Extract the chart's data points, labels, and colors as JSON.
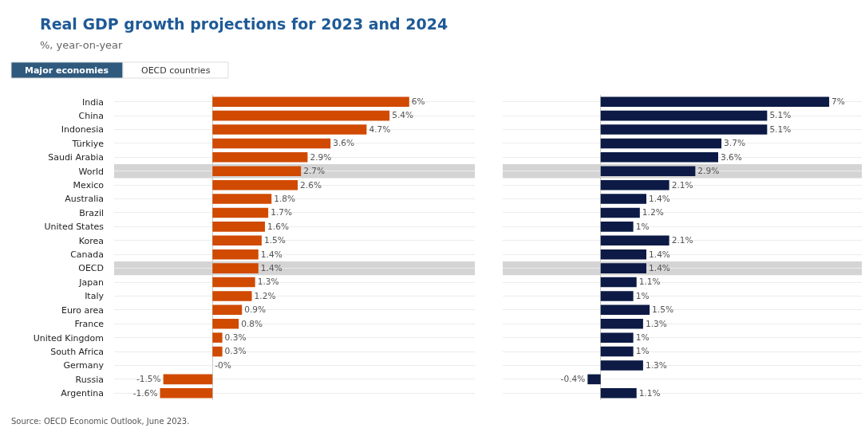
{
  "chart_data": [
    {
      "type": "bar",
      "orientation": "horizontal",
      "title": "Real GDP growth projections for 2023 and 2024",
      "subtitle": "%, year-on-year",
      "annotations": [
        "Major economies",
        "OECD countries",
        "Source: OECD Economic Outlook, June 2023."
      ],
      "categories": [
        "India",
        "China",
        "Indonesia",
        "Türkiye",
        "Saudi Arabia",
        "World",
        "Mexico",
        "Australia",
        "Brazil",
        "United States",
        "Korea",
        "Canada",
        "OECD",
        "Japan",
        "Italy",
        "Euro area",
        "France",
        "United Kingdom",
        "South Africa",
        "Germany",
        "Russia",
        "Argentina"
      ],
      "series": [
        {
          "color": "#d04a02",
          "values": [
            6,
            5.4,
            4.7,
            3.6,
            2.9,
            2.7,
            2.6,
            1.8,
            1.7,
            1.6,
            1.5,
            1.4,
            1.4,
            1.3,
            1.2,
            0.9,
            0.8,
            0.3,
            0.3,
            0,
            -1.5,
            -1.6
          ],
          "value_labels": [
            "6%",
            "5.4%",
            "4.7%",
            "3.6%",
            "2.9%",
            "2.7%",
            "2.6%",
            "1.8%",
            "1.7%",
            "1.6%",
            "1.5%",
            "1.4%",
            "1.4%",
            "1.3%",
            "1.2%",
            "0.9%",
            "0.8%",
            "0.3%",
            "0.3%",
            "-0%",
            "-1.5%",
            "-1.6%"
          ]
        }
      ],
      "xlim": [
        -3,
        8
      ],
      "grid": "y",
      "tick_labels": "y",
      "bands": [
        {
          "axis": "y",
          "from": "World",
          "to": "World",
          "color": "#d4d4d4"
        },
        {
          "axis": "y",
          "from": "OECD",
          "to": "OECD",
          "color": "#d4d4d4"
        }
      ]
    },
    {
      "type": "bar",
      "orientation": "horizontal",
      "categories": [
        "India",
        "China",
        "Indonesia",
        "Türkiye",
        "Saudi Arabia",
        "World",
        "Mexico",
        "Australia",
        "Brazil",
        "United States",
        "Korea",
        "Canada",
        "OECD",
        "Japan",
        "Italy",
        "Euro area",
        "France",
        "United Kingdom",
        "South Africa",
        "Germany",
        "Russia",
        "Argentina"
      ],
      "series": [
        {
          "color": "#0c1a45",
          "values": [
            7,
            5.1,
            5.1,
            3.7,
            3.6,
            2.9,
            2.1,
            1.4,
            1.2,
            1,
            2.1,
            1.4,
            1.4,
            1.1,
            1,
            1.5,
            1.3,
            1,
            1,
            1.3,
            -0.4,
            1.1
          ],
          "value_labels": [
            "7%",
            "5.1%",
            "5.1%",
            "3.7%",
            "3.6%",
            "2.9%",
            "2.1%",
            "1.4%",
            "1.2%",
            "1%",
            "2.1%",
            "1.4%",
            "1.4%",
            "1.1%",
            "1%",
            "1.5%",
            "1.3%",
            "1%",
            "1%",
            "1.3%",
            "-0.4%",
            "1.1%"
          ]
        }
      ],
      "xlim": [
        -3,
        8
      ],
      "grid": "y",
      "tick_labels": false,
      "bands": [
        {
          "axis": "y",
          "from": "World",
          "to": "World",
          "color": "#d4d4d4"
        },
        {
          "axis": "y",
          "from": "OECD",
          "to": "OECD",
          "color": "#d4d4d4"
        }
      ]
    }
  ]
}
